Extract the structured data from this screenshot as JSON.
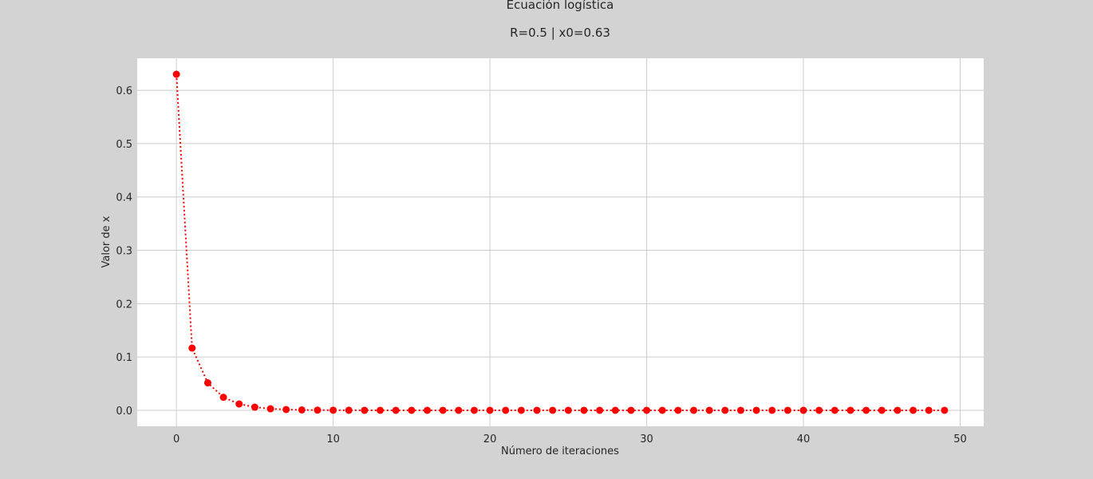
{
  "chart_data": {
    "type": "line",
    "title": "Ecuación logística",
    "subtitle": "R=0.5  |  x0=0.63",
    "xlabel": "Número de iteraciones",
    "ylabel": "Valor de x",
    "xlim": [
      -2.5,
      51.5
    ],
    "ylim": [
      -0.03,
      0.66
    ],
    "xticks": [
      0,
      10,
      20,
      30,
      40,
      50
    ],
    "yticks": [
      0.0,
      0.1,
      0.2,
      0.3,
      0.4,
      0.5,
      0.6
    ],
    "xtick_labels": [
      "0",
      "10",
      "20",
      "30",
      "40",
      "50"
    ],
    "ytick_labels": [
      "0.0",
      "0.1",
      "0.2",
      "0.3",
      "0.4",
      "0.5",
      "0.6"
    ],
    "grid": true,
    "line_style": "dotted",
    "marker": "circle",
    "series": [
      {
        "color": "#ff0000",
        "x": [
          0,
          1,
          2,
          3,
          4,
          5,
          6,
          7,
          8,
          9,
          10,
          11,
          12,
          13,
          14,
          15,
          16,
          17,
          18,
          19,
          20,
          21,
          22,
          23,
          24,
          25,
          26,
          27,
          28,
          29,
          30,
          31,
          32,
          33,
          34,
          35,
          36,
          37,
          38,
          39,
          40,
          41,
          42,
          43,
          44,
          45,
          46,
          47,
          48,
          49
        ],
        "y": [
          0.63,
          0.1166,
          0.0515,
          0.0244,
          0.0119,
          0.0059,
          0.0029,
          0.0015,
          0.0007,
          0.0004,
          0.0002,
          0.0001,
          0.0,
          0.0,
          0.0,
          0.0,
          0.0,
          0.0,
          0.0,
          0.0,
          0.0,
          0.0,
          0.0,
          0.0,
          0.0,
          0.0,
          0.0,
          0.0,
          0.0,
          0.0,
          0.0,
          0.0,
          0.0,
          0.0,
          0.0,
          0.0,
          0.0,
          0.0,
          0.0,
          0.0,
          0.0,
          0.0,
          0.0,
          0.0,
          0.0,
          0.0,
          0.0,
          0.0,
          0.0,
          0.0
        ]
      }
    ],
    "colors": {
      "figure_background": "#d3d3d3",
      "plot_background": "#ffffff",
      "grid": "#cccccc"
    }
  }
}
